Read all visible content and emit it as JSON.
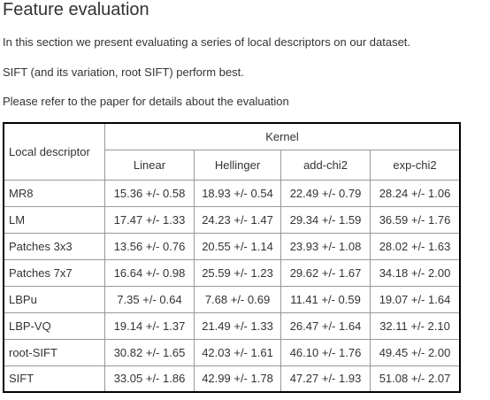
{
  "header": {
    "title": "Feature evaluation"
  },
  "paragraphs": [
    "In this section we present evaluating a series of local descriptors on our dataset.",
    "SIFT (and its variation, root SIFT) perform best.",
    "Please refer to the paper for details about the evaluation"
  ],
  "table": {
    "row_header": "Local descriptor",
    "group_header": "Kernel",
    "columns": [
      "Linear",
      "Hellinger",
      "add-chi2",
      "exp-chi2"
    ],
    "rows": [
      [
        "MR8",
        "15.36 +/- 0.58",
        "18.93 +/- 0.54",
        "22.49 +/- 0.79",
        "28.24 +/- 1.06"
      ],
      [
        "LM",
        "17.47 +/- 1.33",
        "24.23 +/- 1.47",
        "29.34 +/- 1.59",
        "36.59 +/- 1.76"
      ],
      [
        "Patches 3x3",
        "13.56 +/- 0.76",
        "20.55 +/- 1.14",
        "23.93 +/- 1.08",
        "28.02 +/- 1.63"
      ],
      [
        "Patches 7x7",
        "16.64 +/- 0.98",
        "25.59 +/- 1.23",
        "29.62 +/- 1.67",
        "34.18 +/- 2.00"
      ],
      [
        "LBPu",
        "7.35 +/- 0.64",
        "7.68 +/- 0.69",
        "11.41 +/- 0.59",
        "19.07 +/- 1.64"
      ],
      [
        "LBP-VQ",
        "19.14 +/- 1.37",
        "21.49 +/- 1.33",
        "26.47 +/- 1.64",
        "32.11 +/- 2.10"
      ],
      [
        "root-SIFT",
        "30.82 +/- 1.65",
        "42.03 +/- 1.61",
        "46.10 +/- 1.76",
        "49.45 +/- 2.00"
      ],
      [
        "SIFT",
        "33.05 +/- 1.86",
        "42.99 +/- 1.78",
        "47.27 +/- 1.93",
        "51.08 +/- 2.07"
      ]
    ]
  }
}
